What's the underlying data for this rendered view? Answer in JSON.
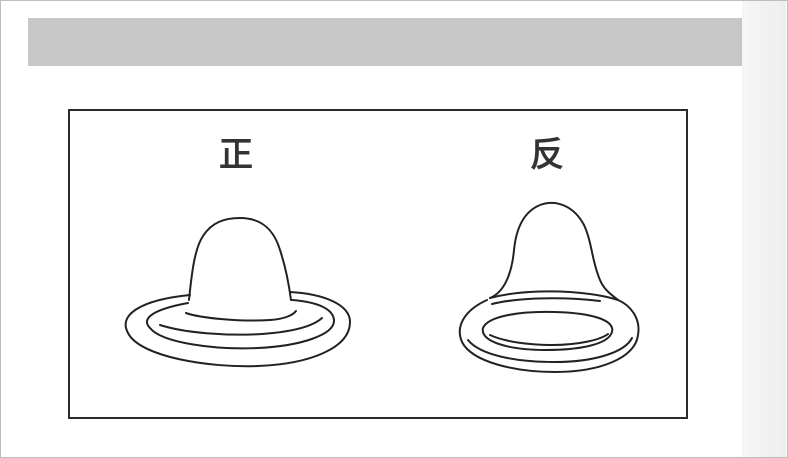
{
  "diagram": {
    "label_front": "正",
    "label_back": "反"
  }
}
